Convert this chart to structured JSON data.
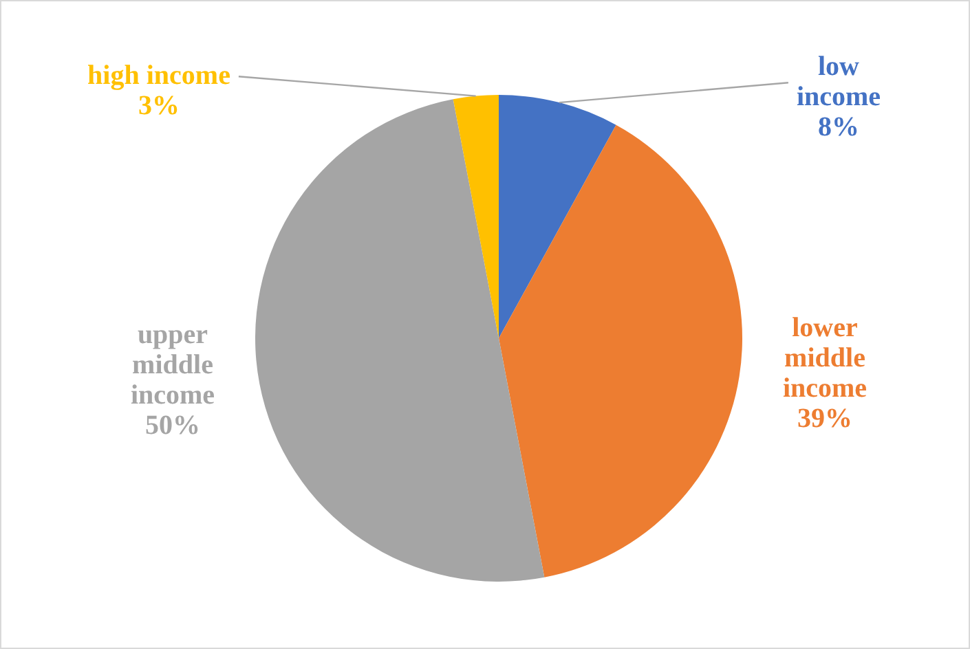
{
  "chart_data": {
    "type": "pie",
    "categories": [
      "low income",
      "lower middle income",
      "upper middle income",
      "high income"
    ],
    "values": [
      8,
      39,
      50,
      3
    ],
    "colors": [
      "#4472c4",
      "#ed7d31",
      "#a5a5a5",
      "#ffc000"
    ],
    "value_labels": [
      "8%",
      "39%",
      "50%",
      "3%"
    ],
    "legend": false
  }
}
